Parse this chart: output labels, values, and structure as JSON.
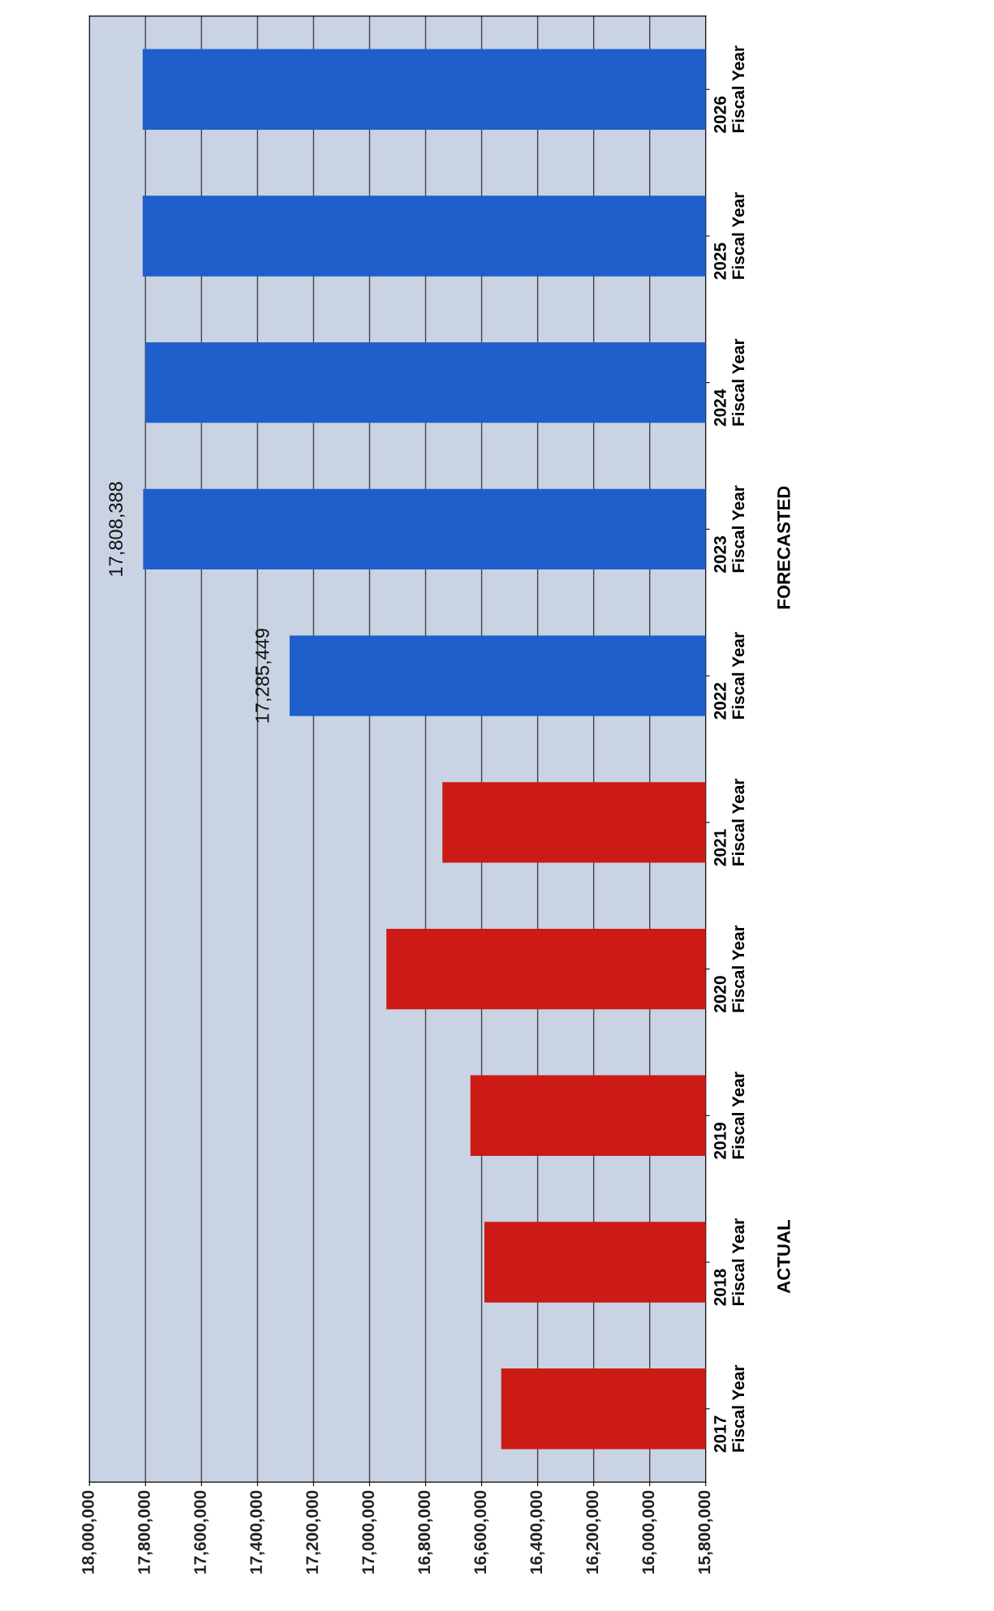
{
  "chart_data": {
    "type": "bar",
    "orientation": "horizontal",
    "categories": [
      "2026\nFiscal Year",
      "2025\nFiscal Year",
      "2024\nFiscal Year",
      "2023\nFiscal Year",
      "2022\nFiscal Year",
      "2021\nFiscal Year",
      "2020\nFiscal Year",
      "2019\nFiscal Year",
      "2018\nFiscal Year",
      "2017\nFiscal Year"
    ],
    "values": [
      17810000,
      17810000,
      17800000,
      17808388,
      17285449,
      16740000,
      16940000,
      16640000,
      16590000,
      16530000
    ],
    "colors": [
      "#1f5fcc",
      "#1f5fcc",
      "#1f5fcc",
      "#1f5fcc",
      "#1f5fcc",
      "#cc1a14",
      "#cc1a14",
      "#cc1a14",
      "#cc1a14",
      "#cc1a14"
    ],
    "value_labels": [
      null,
      null,
      null,
      "17,808,388",
      "17,285,449",
      null,
      null,
      null,
      null,
      null
    ],
    "xlim": [
      18000000,
      15800000
    ],
    "xticks": [
      {
        "value": 18000000,
        "label": "18,000,000"
      },
      {
        "value": 17800000,
        "label": "17,800,000"
      },
      {
        "value": 17600000,
        "label": "17,600,000"
      },
      {
        "value": 17400000,
        "label": "17,400,000"
      },
      {
        "value": 17200000,
        "label": "17,200,000"
      },
      {
        "value": 17000000,
        "label": "17,000,000"
      },
      {
        "value": 16800000,
        "label": "16,800,000"
      },
      {
        "value": 16600000,
        "label": "16,600,000"
      },
      {
        "value": 16400000,
        "label": "16,400,000"
      },
      {
        "value": 16200000,
        "label": "16,200,000"
      },
      {
        "value": 16000000,
        "label": "16,000,000"
      },
      {
        "value": 15800000,
        "label": "15,800,000"
      }
    ],
    "annotations": [
      "ACTUAL",
      "FORECASTED"
    ],
    "grid": "x",
    "legend": false
  }
}
